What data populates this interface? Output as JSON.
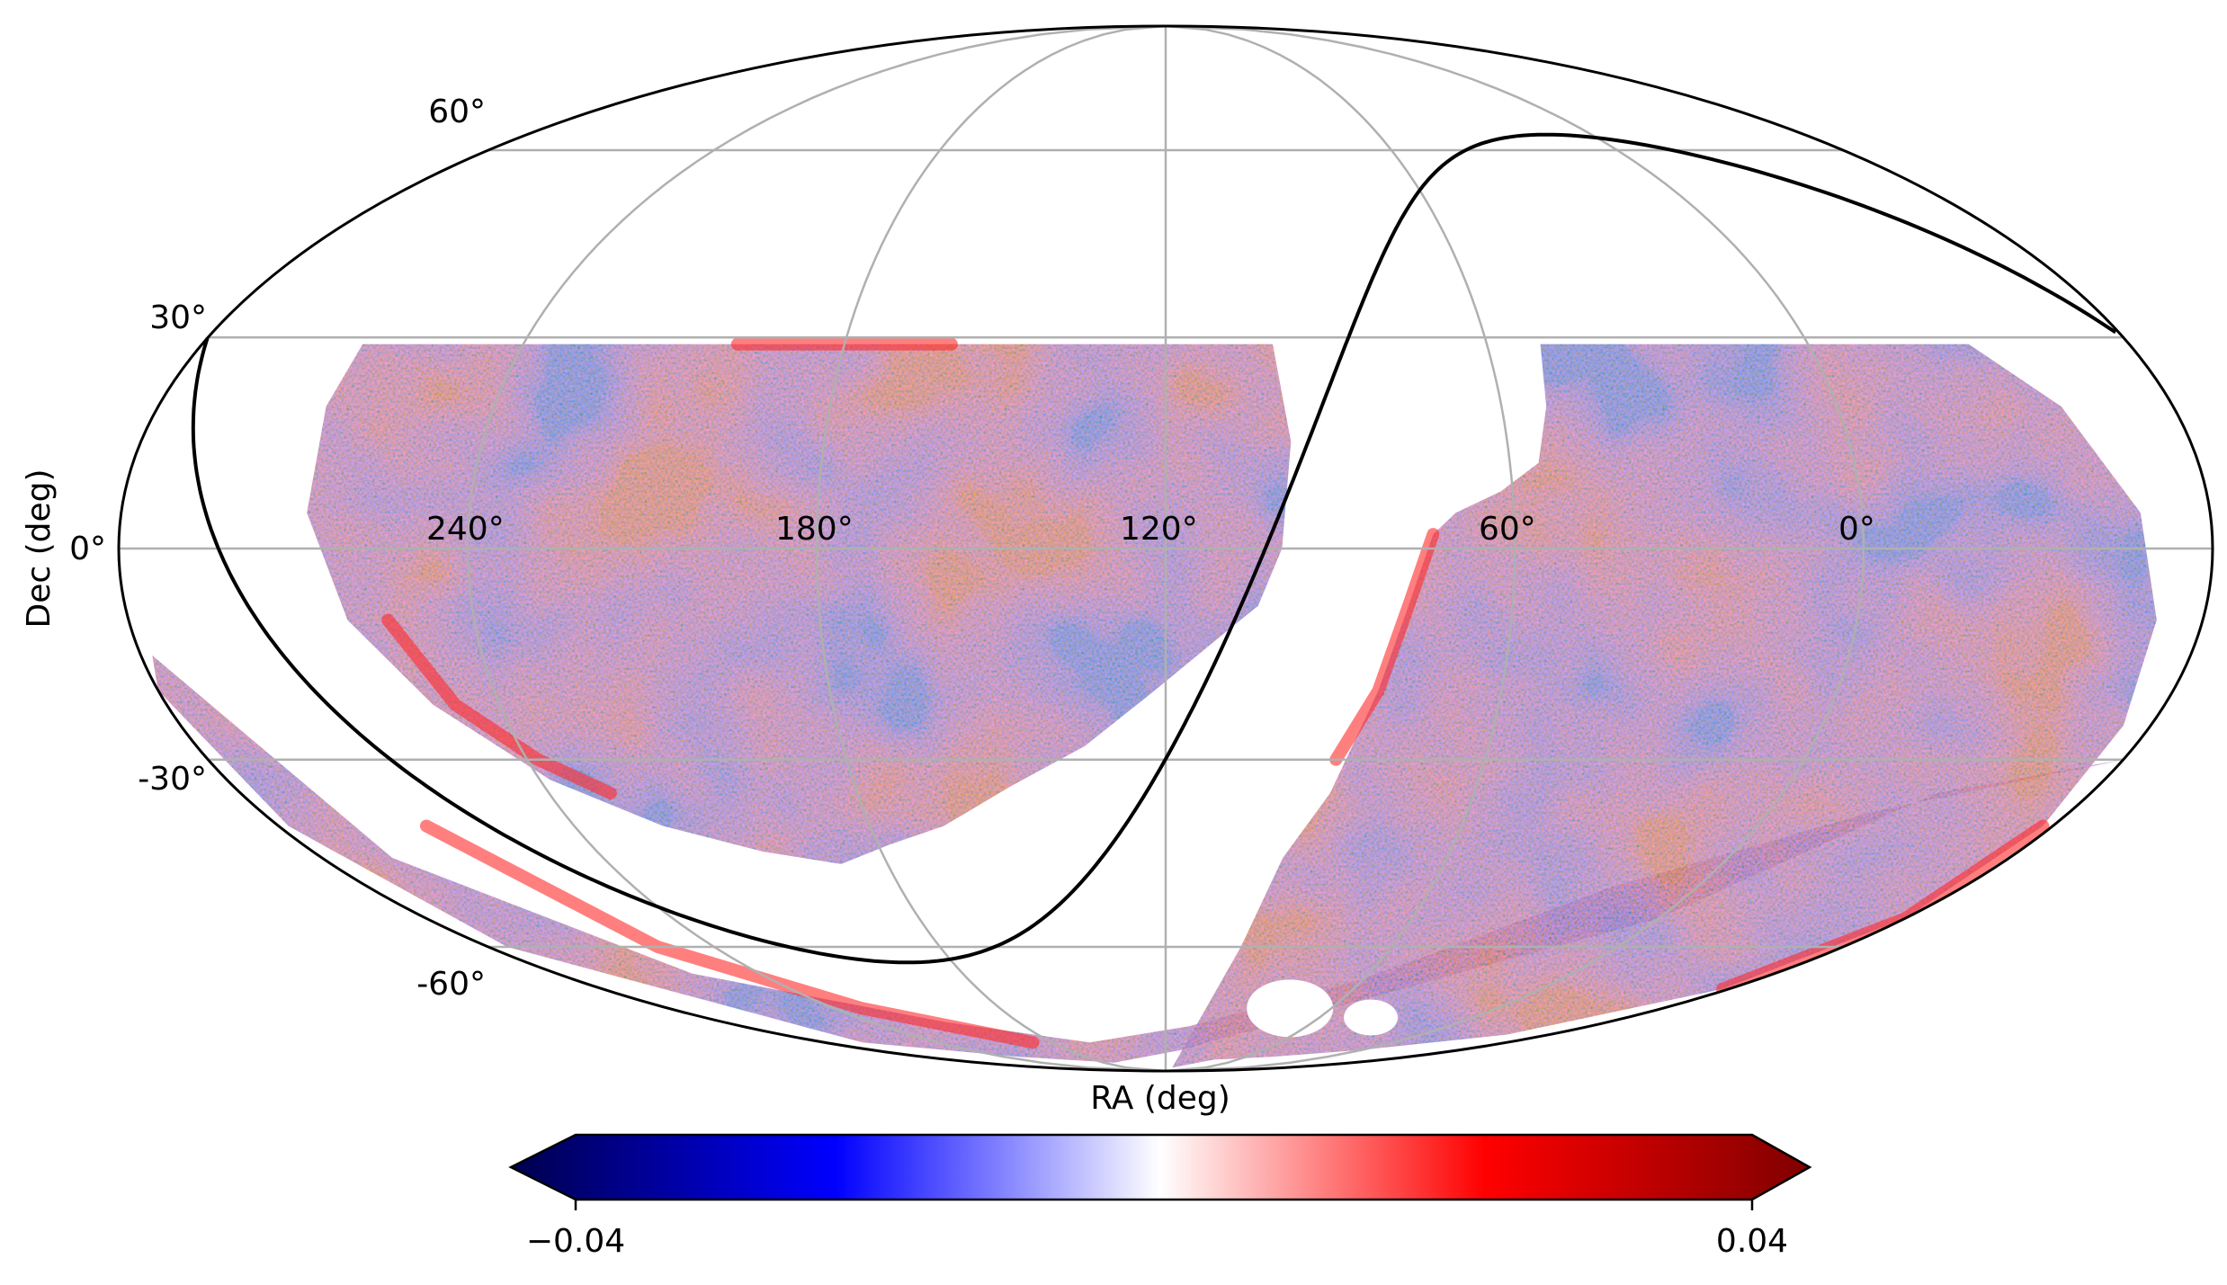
{
  "chart_data": {
    "type": "heatmap",
    "projection": "mollweide",
    "title": "",
    "xlabel": "RA (deg)",
    "ylabel": "Dec (deg)",
    "ra_tick_labels": [
      "240°",
      "180°",
      "120°",
      "60°",
      "0°"
    ],
    "ra_tick_values": [
      240,
      180,
      120,
      60,
      0
    ],
    "dec_tick_labels": [
      "60°",
      "30°",
      "0°",
      "-30°",
      "-60°"
    ],
    "dec_tick_values": [
      60,
      30,
      0,
      -30,
      -60
    ],
    "grid": true,
    "colorbar": {
      "orientation": "horizontal",
      "placement": "bottom",
      "extend": "both",
      "colormap": "seismic",
      "vmin": -0.04,
      "vmax": 0.04,
      "tick_labels": [
        "−0.04",
        "0.04"
      ],
      "tick_values": [
        -0.04,
        0.04
      ]
    },
    "footprint": {
      "northern_cap_dec_max": 30,
      "coverage": "two lobes split by the Galactic plane; southern sky largely covered"
    },
    "overlay_curve": "galactic plane (black line)",
    "colors": {
      "negative": "#0000ff",
      "zero": "#ffffff",
      "positive": "#ff0000",
      "grid": "#b0b0b0",
      "outline": "#000000"
    }
  }
}
